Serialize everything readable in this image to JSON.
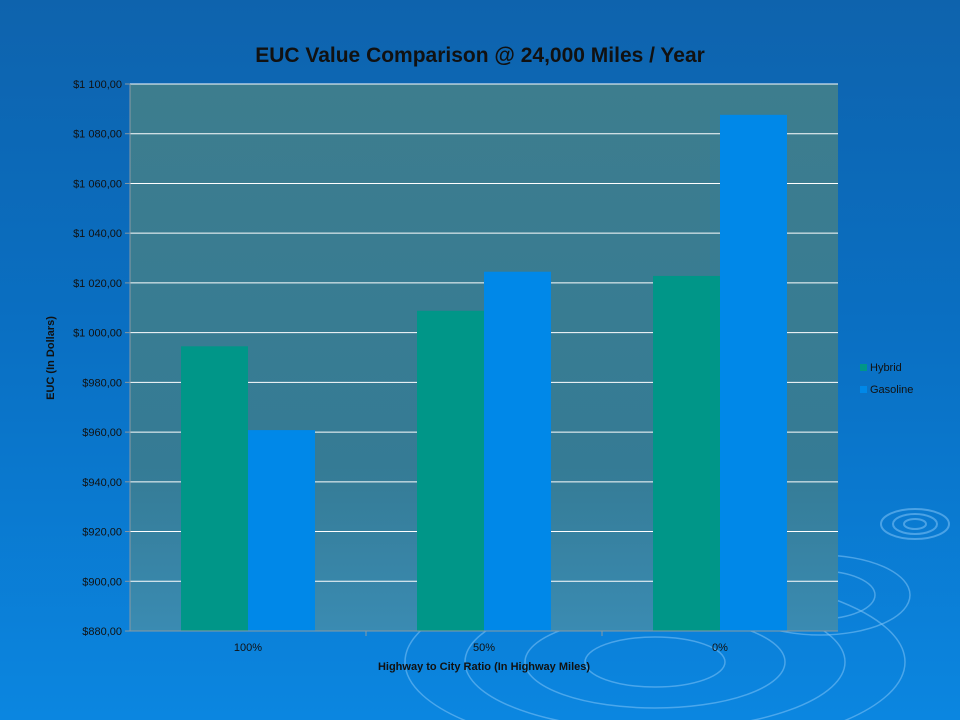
{
  "chart_data": {
    "type": "bar",
    "title": "EUC Value Comparison @ 24,000 Miles / Year",
    "xlabel": "Highway to City Ratio (In Highway Miles)",
    "ylabel": "EUC (In Dollars)",
    "categories": [
      "100%",
      "50%",
      "0%"
    ],
    "series": [
      {
        "name": "Hybrid",
        "color": "#009688",
        "values": [
          994.5,
          1008.8,
          1022.8
        ]
      },
      {
        "name": "Gasoline",
        "color": "#0088e8",
        "values": [
          960.8,
          1024.5,
          1087.6
        ]
      }
    ],
    "ylim": [
      880,
      1100
    ],
    "yticks": [
      {
        "value": 880,
        "label": "$880,00"
      },
      {
        "value": 900,
        "label": "$900,00"
      },
      {
        "value": 920,
        "label": "$920,00"
      },
      {
        "value": 940,
        "label": "$940,00"
      },
      {
        "value": 960,
        "label": "$960,00"
      },
      {
        "value": 980,
        "label": "$980,00"
      },
      {
        "value": 1000,
        "label": "$1 000,00"
      },
      {
        "value": 1020,
        "label": "$1 020,00"
      },
      {
        "value": 1040,
        "label": "$1 040,00"
      },
      {
        "value": 1060,
        "label": "$1 060,00"
      },
      {
        "value": 1080,
        "label": "$1 080,00"
      },
      {
        "value": 1100,
        "label": "$1 100,00"
      }
    ],
    "grid": true,
    "legend_position": "right"
  }
}
